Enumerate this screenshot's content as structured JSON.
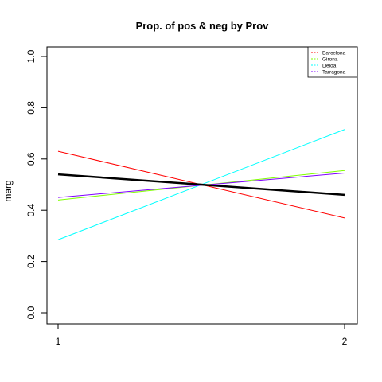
{
  "chart_data": {
    "type": "line",
    "title": "Prop. of pos & neg by Prov",
    "xlabel": "",
    "ylabel": "marg",
    "x": [
      1,
      2
    ],
    "x_ticks": [
      "1",
      "2"
    ],
    "y_ticks": [
      "0.0",
      "0.2",
      "0.4",
      "0.6",
      "0.8",
      "1.0"
    ],
    "xlim": [
      1,
      2
    ],
    "ylim": [
      0,
      1
    ],
    "grid": false,
    "legend_position": "top-right",
    "series": [
      {
        "name": "Barcelona",
        "values": [
          0.63,
          0.37
        ],
        "color": "#ff0000",
        "legend_line": "dashed"
      },
      {
        "name": "Girona",
        "values": [
          0.44,
          0.555
        ],
        "color": "#80ff00",
        "legend_line": "dashed"
      },
      {
        "name": "Lleida",
        "values": [
          0.285,
          0.715
        ],
        "color": "#00ffff",
        "legend_line": "dashed"
      },
      {
        "name": "Tarragona",
        "values": [
          0.45,
          0.545
        ],
        "color": "#8000ff",
        "legend_line": "dashed"
      },
      {
        "values": [
          0.54,
          0.46
        ],
        "color": "#000000"
      }
    ]
  }
}
